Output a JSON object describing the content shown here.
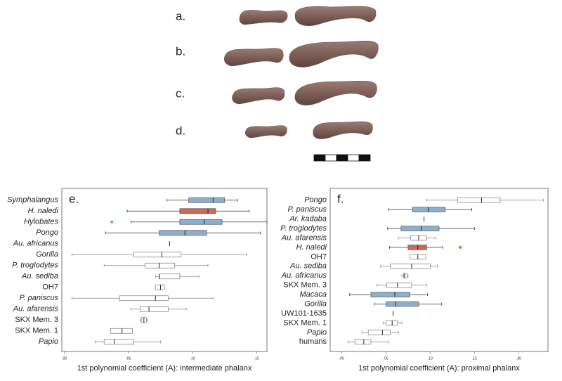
{
  "photo_labels": [
    "a.",
    "b.",
    "c.",
    "d."
  ],
  "chart_data": [
    {
      "type": "box",
      "panel": "e.",
      "xlabel": "1st polynomial coefficient (A): intermediate phalanx",
      "xlim": [
        -0.002,
        0.158
      ],
      "xticks": [
        {
          "value": 0,
          "label": ".00"
        },
        {
          "value": 0.05,
          "label": ".05"
        },
        {
          "value": 0.1,
          "label": ".10"
        },
        {
          "value": 0.15,
          "label": ".15"
        }
      ],
      "series": [
        {
          "name": "Symphalangus",
          "italic": true,
          "color": "#8eaecd",
          "values": [
            0.08,
            0.097,
            0.116,
            0.125,
            0.135
          ]
        },
        {
          "name": "H. naledi",
          "italic": true,
          "label_color": "#d9261c",
          "color": "#d0675a",
          "values": [
            0.049,
            0.09,
            0.112,
            0.118,
            0.144
          ]
        },
        {
          "name": "Hylobates",
          "italic": true,
          "color": "#8eaecd",
          "values": [
            0.052,
            0.09,
            0.109,
            0.123,
            0.158
          ],
          "outliers": [
            0.037
          ],
          "outlier_color": "#5aa7e0"
        },
        {
          "name": "Pongo",
          "italic": true,
          "color": "#8eaecd",
          "values": [
            0.032,
            0.074,
            0.094,
            0.111,
            0.153
          ]
        },
        {
          "name": "Au. africanus",
          "italic": true,
          "color": "#ffffff",
          "values": [
            null,
            null,
            0.082,
            null,
            null
          ]
        },
        {
          "name": "Gorilla",
          "italic": true,
          "color": "#ffffff",
          "values": [
            0.006,
            0.054,
            0.076,
            0.091,
            0.142
          ]
        },
        {
          "name": "P. troglodytes",
          "italic": true,
          "color": "#ffffff",
          "values": [
            0.031,
            0.063,
            0.074,
            0.086,
            0.112
          ]
        },
        {
          "name": "Au. sediba",
          "italic": true,
          "color": "#ffffff",
          "values": [
            0.071,
            0.074,
            0.074,
            0.09,
            0.105
          ]
        },
        {
          "name": "OH7",
          "italic": false,
          "color": "#ffffff",
          "values": [
            null,
            0.071,
            0.075,
            0.078,
            null
          ]
        },
        {
          "name": "P. paniscus",
          "italic": true,
          "color": "#ffffff",
          "values": [
            0.006,
            0.043,
            0.071,
            0.081,
            0.116
          ]
        },
        {
          "name": "Au. afarensis",
          "italic": true,
          "color": "#ffffff",
          "values": [
            0.052,
            0.059,
            0.066,
            0.081,
            0.095
          ]
        },
        {
          "name": "SKX Mem. 3",
          "italic": false,
          "color": "#ffffff",
          "values": [
            0.059,
            0.06,
            0.062,
            0.064,
            0.065
          ]
        },
        {
          "name": "SKX Mem. 1",
          "italic": false,
          "color": "#ffffff",
          "values": [
            null,
            0.036,
            0.045,
            0.053,
            null
          ]
        },
        {
          "name": "Papio",
          "italic": true,
          "color": "#ffffff",
          "values": [
            0.024,
            0.031,
            0.039,
            0.054,
            0.075
          ]
        }
      ]
    },
    {
      "type": "box",
      "panel": "f.",
      "xlabel": "1st polynomial coefficient (A): proximal phalanx",
      "xlim": [
        -0.013,
        0.233
      ],
      "xticks": [
        {
          "value": 0,
          "label": ".00"
        },
        {
          "value": 0.05,
          "label": ".05"
        },
        {
          "value": 0.1,
          "label": ".10"
        },
        {
          "value": 0.15,
          "label": ".15"
        },
        {
          "value": 0.2,
          "label": ".20"
        }
      ],
      "series": [
        {
          "name": "Pongo",
          "italic": true,
          "color": "#ffffff",
          "values": [
            0.096,
            0.131,
            0.158,
            0.179,
            0.228
          ]
        },
        {
          "name": "P. paniscus",
          "italic": true,
          "color": "#8eaecd",
          "values": [
            0.053,
            0.08,
            0.098,
            0.117,
            0.147
          ]
        },
        {
          "name": "Ar. kadaba",
          "italic": true,
          "color": "#ffffff",
          "values": [
            null,
            null,
            0.093,
            null,
            null
          ]
        },
        {
          "name": "P. troglodytes",
          "italic": true,
          "color": "#8eaecd",
          "values": [
            0.052,
            0.067,
            0.09,
            0.11,
            0.15
          ]
        },
        {
          "name": "Au. afarensis",
          "italic": true,
          "color": "#ffffff",
          "values": [
            0.064,
            0.078,
            0.087,
            0.096,
            0.106
          ]
        },
        {
          "name": "H. naledi",
          "italic": true,
          "label_color": "#d9261c",
          "color": "#d0675a",
          "values": [
            0.054,
            0.075,
            0.086,
            0.096,
            0.114
          ],
          "outliers": [
            0.134
          ],
          "outlier_color": "#d0675a"
        },
        {
          "name": "OH7",
          "italic": false,
          "color": "#ffffff",
          "values": [
            null,
            0.077,
            0.086,
            0.095,
            null
          ]
        },
        {
          "name": "Au. sediba",
          "italic": true,
          "color": "#ffffff",
          "values": [
            0.044,
            0.055,
            0.079,
            0.1,
            0.108
          ]
        },
        {
          "name": "Au. africanus",
          "italic": true,
          "color": "#ffffff",
          "values": [
            0.068,
            0.07,
            0.071,
            0.074,
            0.075
          ]
        },
        {
          "name": "SKX Mem. 3",
          "italic": false,
          "color": "#ffffff",
          "values": [
            0.04,
            0.051,
            0.063,
            0.079,
            0.096
          ]
        },
        {
          "name": "Macaca",
          "italic": true,
          "color": "#8eaecd",
          "values": [
            0.009,
            0.033,
            0.06,
            0.077,
            0.097
          ]
        },
        {
          "name": "Gorilla",
          "italic": true,
          "color": "#8eaecd",
          "values": [
            0.037,
            0.05,
            0.061,
            0.087,
            0.113
          ]
        },
        {
          "name": "UW101-1635",
          "italic": false,
          "color": "#ffffff",
          "values": [
            null,
            null,
            0.058,
            null,
            null
          ]
        },
        {
          "name": "SKX Mem. 1",
          "italic": false,
          "color": "#ffffff",
          "values": [
            0.047,
            0.05,
            0.057,
            0.063,
            0.068
          ]
        },
        {
          "name": "Papio",
          "italic": true,
          "color": "#ffffff",
          "values": [
            0.023,
            0.03,
            0.046,
            0.055,
            0.064
          ]
        },
        {
          "name": "humans",
          "italic": false,
          "color": "#ffffff",
          "values": [
            0.007,
            0.015,
            0.025,
            0.033,
            0.053
          ]
        }
      ]
    }
  ]
}
